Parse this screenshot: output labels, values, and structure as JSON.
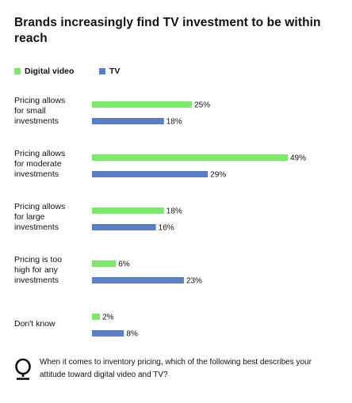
{
  "title": "Brands increasingly find TV investment to be within reach",
  "footer": {
    "question": "When it comes to inventory pricing, which of the following best describes your attitude toward digital video and TV?"
  },
  "icons": {
    "question_mark": "q-icon"
  },
  "colors": {
    "digital_video": "#7CE96A",
    "tv": "#5B7EC8",
    "text": "#111111"
  },
  "chart_data": {
    "type": "bar",
    "orientation": "horizontal",
    "title": "Brands increasingly find TV investment to be within reach",
    "categories": [
      "Pricing allows for small investments",
      "Pricing allows for moderate investments",
      "Pricing allows for large investments",
      "Pricing is too high for any investments",
      "Don't know"
    ],
    "series": [
      {
        "name": "Digital video",
        "color": "#7CE96A",
        "values": [
          25,
          49,
          18,
          6,
          2
        ],
        "labels": [
          "25%",
          "49%",
          "18%",
          "6%",
          "2%"
        ]
      },
      {
        "name": "TV",
        "color": "#5B7EC8",
        "values": [
          18,
          29,
          16,
          23,
          8
        ],
        "labels": [
          "18%",
          "29%",
          "16%",
          "23%",
          "8%"
        ]
      }
    ],
    "value_unit": "%",
    "xlim": [
      0,
      49
    ],
    "grid": false,
    "legend_position": "top-left",
    "xlabel": "",
    "ylabel": ""
  }
}
